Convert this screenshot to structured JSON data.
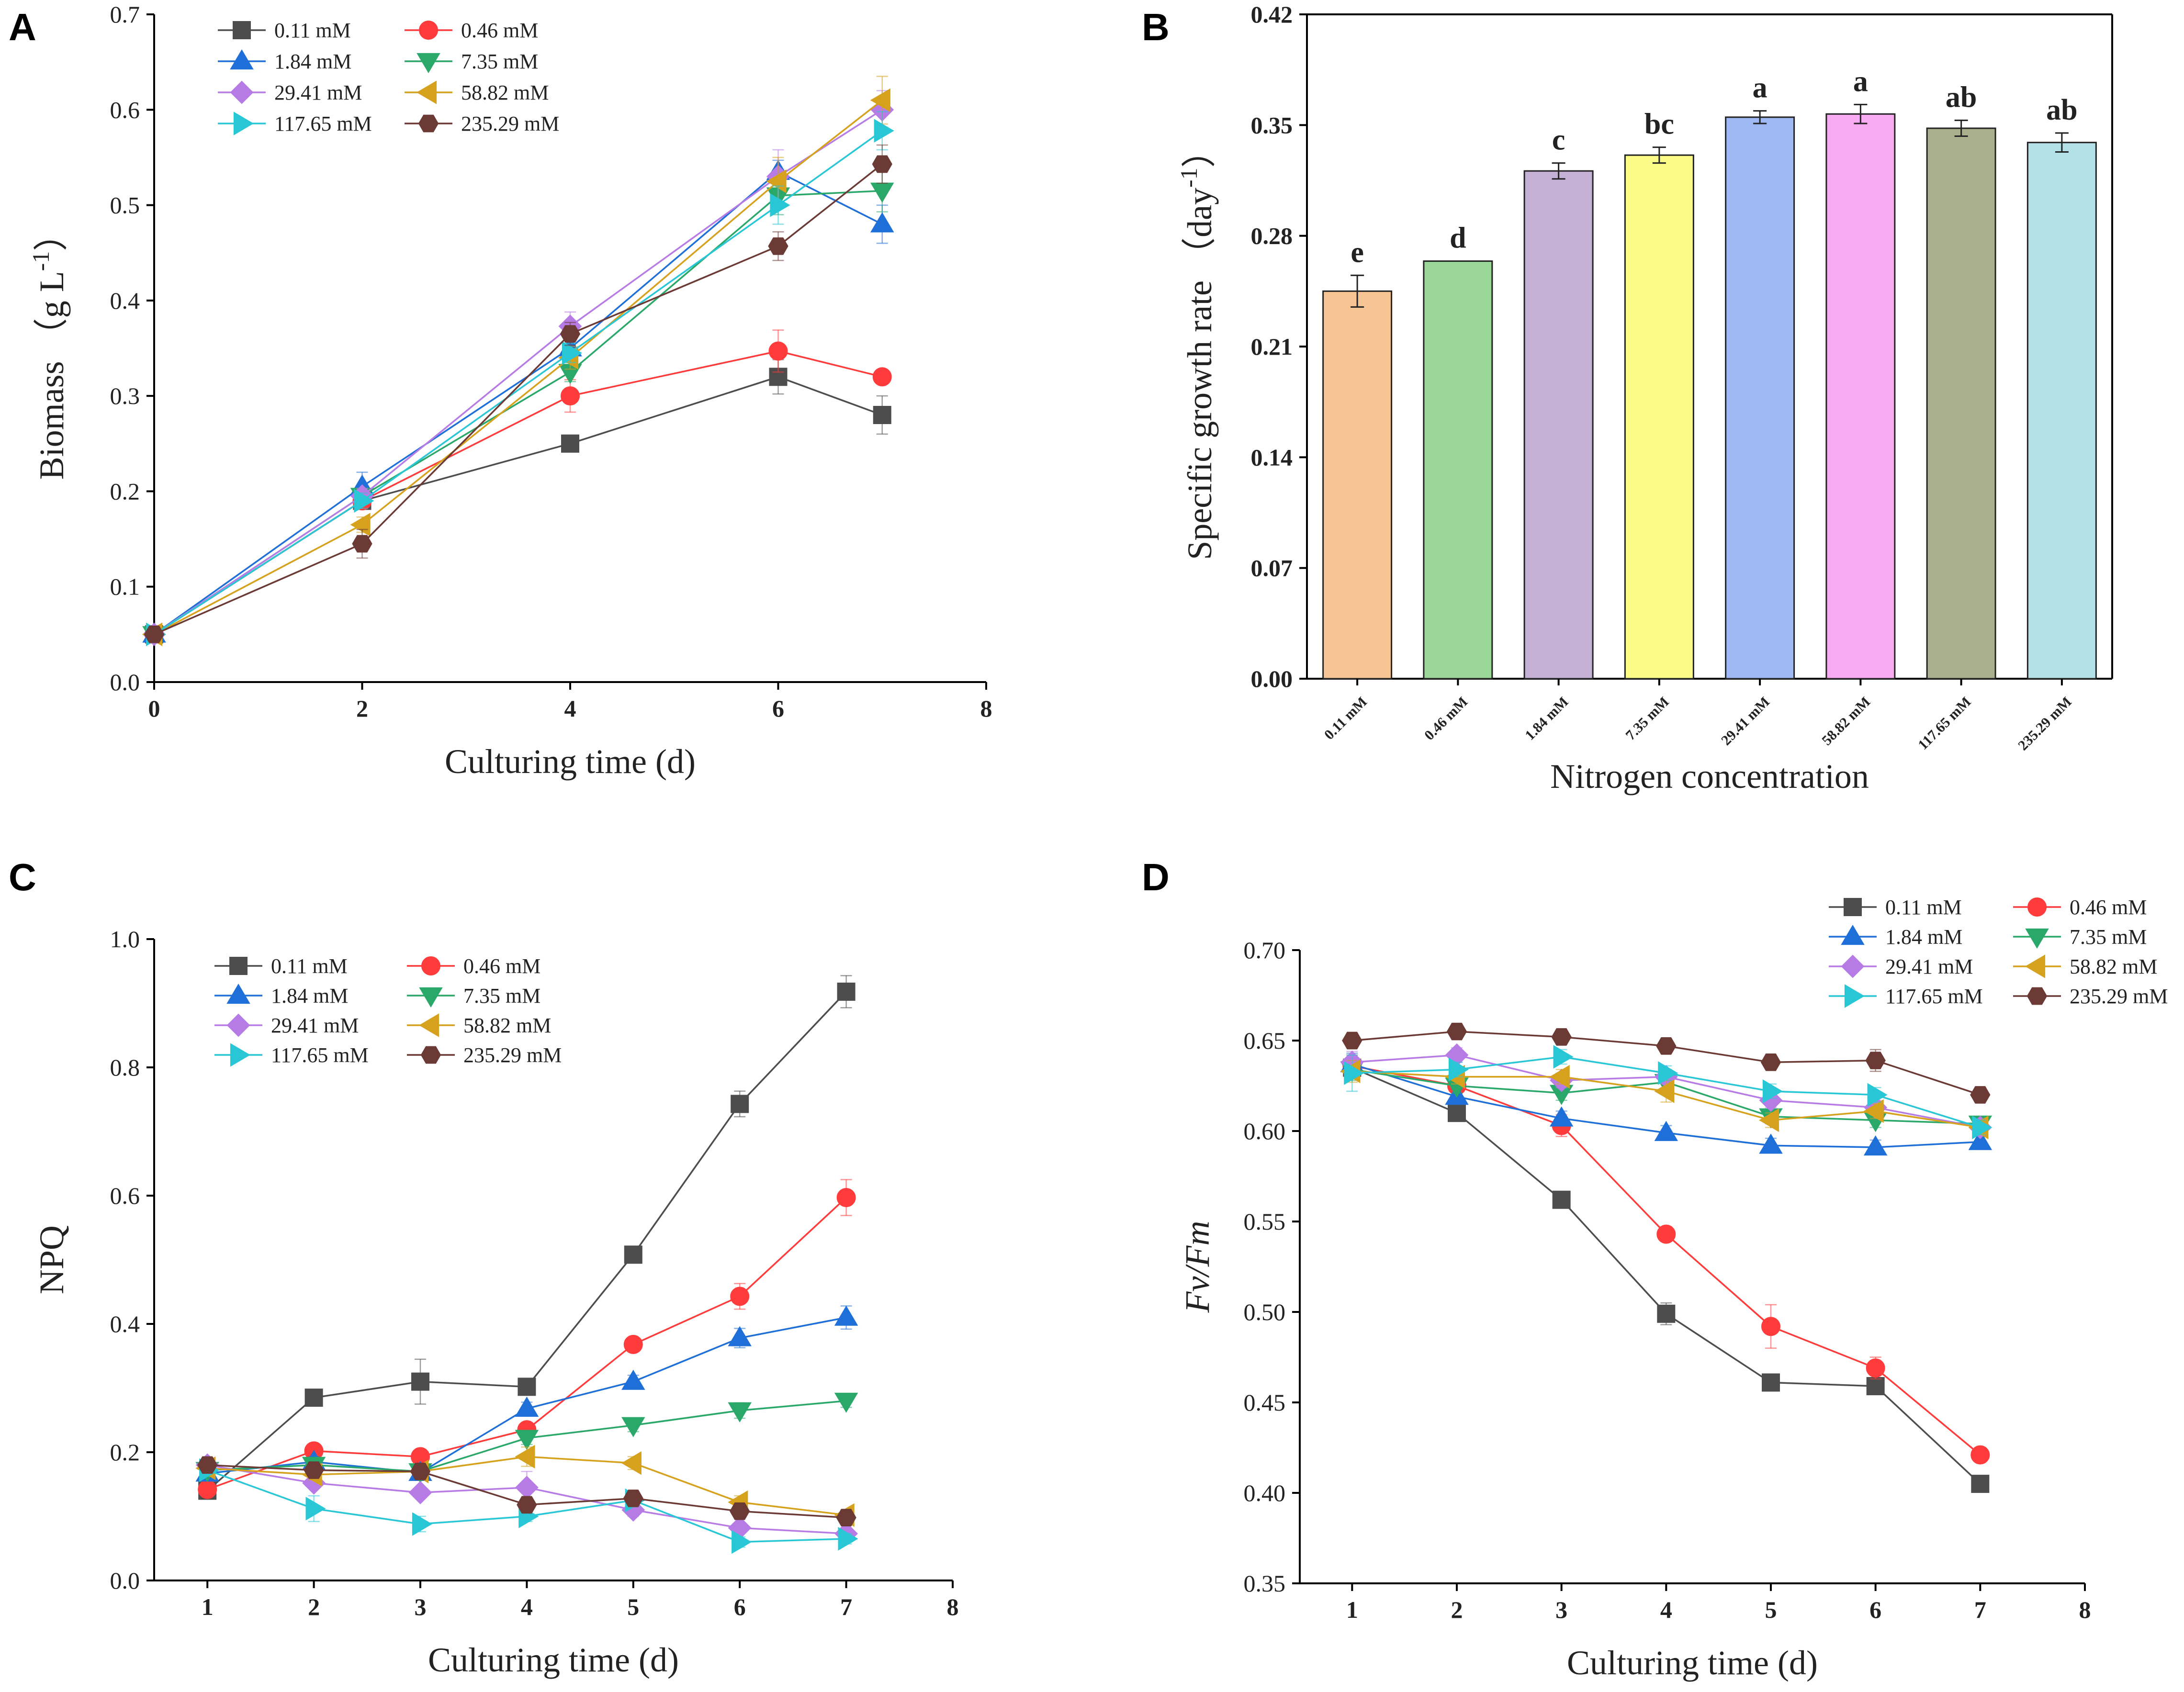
{
  "chart_data": [
    {
      "panel": "A",
      "type": "line",
      "xlabel": "Culturing time (d)",
      "ylabel": "Biomass （g L⁻¹）",
      "ylabel_main": "Biomass",
      "ylabel_unit": "（g L",
      "ylabel_exp": "-1",
      "ylabel_close": "）",
      "xlim": [
        0,
        8
      ],
      "ylim": [
        0,
        0.7
      ],
      "xticks": [
        0,
        2,
        4,
        6,
        8
      ],
      "xtick_labels": [
        "0",
        "2",
        "4",
        "6",
        "8"
      ],
      "yticks": [
        0,
        0.1,
        0.2,
        0.3,
        0.4,
        0.5,
        0.6,
        0.7
      ],
      "ytick_labels": [
        "0.0",
        "0.1",
        "0.2",
        "0.3",
        "0.4",
        "0.5",
        "0.6",
        "0.7"
      ],
      "x": [
        0,
        2,
        4,
        6,
        7
      ],
      "series": [
        {
          "name": "0.11 mM",
          "color": "#4d4d4d",
          "marker": "square",
          "values": [
            0.05,
            0.19,
            0.25,
            0.32,
            0.28
          ],
          "err": [
            0.004,
            0.008,
            0.008,
            0.018,
            0.02
          ]
        },
        {
          "name": "0.46 mM",
          "color": "#ff3b3b",
          "marker": "circle",
          "values": [
            0.05,
            0.19,
            0.3,
            0.347,
            0.32
          ],
          "err": [
            0.004,
            0.008,
            0.017,
            0.022,
            0.006
          ]
        },
        {
          "name": "1.84 mM",
          "color": "#1f6fd8",
          "marker": "triangle-up",
          "values": [
            0.05,
            0.205,
            0.35,
            0.535,
            0.48
          ],
          "err": [
            0.004,
            0.015,
            0.012,
            0.012,
            0.02
          ]
        },
        {
          "name": "7.35 mM",
          "color": "#2aa86a",
          "marker": "triangle-down",
          "values": [
            0.05,
            0.195,
            0.325,
            0.51,
            0.515
          ],
          "err": [
            0.004,
            0.008,
            0.01,
            0.02,
            0.022
          ]
        },
        {
          "name": "29.41 mM",
          "color": "#b77be6",
          "marker": "diamond",
          "values": [
            0.05,
            0.195,
            0.373,
            0.53,
            0.6
          ],
          "err": [
            0.004,
            0.008,
            0.015,
            0.028,
            0.02
          ]
        },
        {
          "name": "58.82 mM",
          "color": "#d6a21e",
          "marker": "triangle-left",
          "values": [
            0.05,
            0.165,
            0.34,
            0.525,
            0.61
          ],
          "err": [
            0.004,
            0.008,
            0.012,
            0.025,
            0.025
          ]
        },
        {
          "name": "117.65 mM",
          "color": "#29c7d6",
          "marker": "triangle-right",
          "values": [
            0.05,
            0.19,
            0.345,
            0.5,
            0.578
          ],
          "err": [
            0.004,
            0.008,
            0.01,
            0.02,
            0.02
          ]
        },
        {
          "name": "235.29 mM",
          "color": "#6b3a35",
          "marker": "hexagon",
          "values": [
            0.05,
            0.145,
            0.365,
            0.457,
            0.543
          ],
          "err": [
            0.004,
            0.015,
            0.012,
            0.015,
            0.02
          ]
        }
      ]
    },
    {
      "panel": "B",
      "type": "bar",
      "xlabel": "Nitrogen concentration",
      "ylabel": "Specific growth rate （day⁻¹）",
      "ylabel_main": "Specific growth rate （day",
      "ylabel_exp": "-1",
      "ylabel_close": "）",
      "ylim": [
        0,
        0.42
      ],
      "yticks": [
        0,
        0.07,
        0.14,
        0.21,
        0.28,
        0.35,
        0.42
      ],
      "ytick_labels": [
        "0.00",
        "0.07",
        "0.14",
        "0.21",
        "0.28",
        "0.35",
        "0.42"
      ],
      "categories": [
        "0.11 mM",
        "0.46 mM",
        "1.84 mM",
        "7.35 mM",
        "29.41 mM",
        "58.82 mM",
        "117.65 mM",
        "235.29 mM"
      ],
      "values": [
        0.245,
        0.264,
        0.321,
        0.331,
        0.355,
        0.357,
        0.348,
        0.339
      ],
      "errors": [
        0.01,
        0.0,
        0.005,
        0.005,
        0.004,
        0.006,
        0.005,
        0.006
      ],
      "significance": [
        "e",
        "d",
        "c",
        "bc",
        "a",
        "a",
        "ab",
        "ab"
      ],
      "colors": [
        "#f7c594",
        "#9ad698",
        "#c5b1d6",
        "#fbfb87",
        "#9db8f2",
        "#f8aaf0",
        "#aab08c",
        "#b4e0e7"
      ]
    },
    {
      "panel": "C",
      "type": "line",
      "xlabel": "Culturing time (d)",
      "ylabel": "NPQ",
      "xlim": [
        0.5,
        8
      ],
      "ylim": [
        0,
        1.0
      ],
      "xticks": [
        1,
        2,
        3,
        4,
        5,
        6,
        7,
        8
      ],
      "xtick_labels": [
        "1",
        "2",
        "3",
        "4",
        "5",
        "6",
        "7",
        "8"
      ],
      "yticks": [
        0,
        0.2,
        0.4,
        0.6,
        0.8,
        1.0
      ],
      "ytick_labels": [
        "0.0",
        "0.2",
        "0.4",
        "0.6",
        "0.8",
        "1.0"
      ],
      "x": [
        1,
        2,
        3,
        4,
        5,
        6,
        7
      ],
      "series": [
        {
          "name": "0.11 mM",
          "color": "#4d4d4d",
          "marker": "square",
          "values": [
            0.14,
            0.285,
            0.31,
            0.302,
            0.508,
            0.743,
            0.918
          ],
          "err": [
            0.005,
            0.01,
            0.035,
            0.008,
            0.008,
            0.02,
            0.025
          ]
        },
        {
          "name": "0.46 mM",
          "color": "#ff3b3b",
          "marker": "circle",
          "values": [
            0.142,
            0.202,
            0.193,
            0.235,
            0.368,
            0.443,
            0.597
          ],
          "err": [
            0.005,
            0.008,
            0.008,
            0.01,
            0.01,
            0.02,
            0.028
          ]
        },
        {
          "name": "1.84 mM",
          "color": "#1f6fd8",
          "marker": "triangle-up",
          "values": [
            0.167,
            0.185,
            0.168,
            0.268,
            0.31,
            0.378,
            0.41
          ],
          "err": [
            0.005,
            0.008,
            0.008,
            0.01,
            0.01,
            0.015,
            0.018
          ]
        },
        {
          "name": "7.35 mM",
          "color": "#2aa86a",
          "marker": "triangle-down",
          "values": [
            0.172,
            0.18,
            0.17,
            0.222,
            0.242,
            0.265,
            0.28
          ],
          "err": [
            0.005,
            0.008,
            0.008,
            0.01,
            0.01,
            0.012,
            0.01
          ]
        },
        {
          "name": "29.41 mM",
          "color": "#b77be6",
          "marker": "diamond",
          "values": [
            0.18,
            0.152,
            0.137,
            0.145,
            0.11,
            0.082,
            0.073
          ],
          "err": [
            0.005,
            0.008,
            0.008,
            0.025,
            0.01,
            0.008,
            0.008
          ]
        },
        {
          "name": "58.82 mM",
          "color": "#d6a21e",
          "marker": "triangle-left",
          "values": [
            0.175,
            0.165,
            0.17,
            0.193,
            0.183,
            0.122,
            0.102
          ],
          "err": [
            0.005,
            0.008,
            0.008,
            0.015,
            0.01,
            0.01,
            0.008
          ]
        },
        {
          "name": "117.65 mM",
          "color": "#29c7d6",
          "marker": "triangle-right",
          "values": [
            0.172,
            0.112,
            0.088,
            0.1,
            0.125,
            0.06,
            0.065
          ],
          "err": [
            0.005,
            0.02,
            0.012,
            0.008,
            0.01,
            0.008,
            0.008
          ]
        },
        {
          "name": "235.29 mM",
          "color": "#6b3a35",
          "marker": "hexagon",
          "values": [
            0.18,
            0.172,
            0.17,
            0.118,
            0.128,
            0.108,
            0.098
          ],
          "err": [
            0.005,
            0.008,
            0.008,
            0.008,
            0.008,
            0.008,
            0.008
          ]
        }
      ]
    },
    {
      "panel": "D",
      "type": "line",
      "xlabel": "Culturing time (d)",
      "ylabel": "Fv/Fm",
      "xlim": [
        0.5,
        8
      ],
      "ylim": [
        0.35,
        0.7
      ],
      "xticks": [
        1,
        2,
        3,
        4,
        5,
        6,
        7,
        8
      ],
      "xtick_labels": [
        "1",
        "2",
        "3",
        "4",
        "5",
        "6",
        "7",
        "8"
      ],
      "yticks": [
        0.35,
        0.4,
        0.45,
        0.5,
        0.55,
        0.6,
        0.65,
        0.7
      ],
      "ytick_labels": [
        "0.35",
        "0.40",
        "0.45",
        "0.50",
        "0.55",
        "0.60",
        "0.65",
        "0.70"
      ],
      "x": [
        1,
        2,
        3,
        4,
        5,
        6,
        7
      ],
      "series": [
        {
          "name": "0.11 mM",
          "color": "#4d4d4d",
          "marker": "square",
          "values": [
            0.635,
            0.61,
            0.562,
            0.499,
            0.461,
            0.459,
            0.405
          ],
          "err": [
            0.006,
            0.004,
            0.004,
            0.006,
            0.004,
            0.004,
            0.004
          ]
        },
        {
          "name": "0.46 mM",
          "color": "#ff3b3b",
          "marker": "circle",
          "values": [
            0.636,
            0.625,
            0.603,
            0.543,
            0.492,
            0.469,
            0.421
          ],
          "err": [
            0.006,
            0.004,
            0.006,
            0.004,
            0.012,
            0.006,
            0.004
          ]
        },
        {
          "name": "1.84 mM",
          "color": "#1f6fd8",
          "marker": "triangle-up",
          "values": [
            0.637,
            0.619,
            0.607,
            0.599,
            0.592,
            0.591,
            0.594
          ],
          "err": [
            0.006,
            0.004,
            0.004,
            0.004,
            0.004,
            0.004,
            0.004
          ]
        },
        {
          "name": "7.35 mM",
          "color": "#2aa86a",
          "marker": "triangle-down",
          "values": [
            0.634,
            0.625,
            0.621,
            0.627,
            0.608,
            0.606,
            0.604
          ],
          "err": [
            0.006,
            0.004,
            0.004,
            0.004,
            0.004,
            0.004,
            0.004
          ]
        },
        {
          "name": "29.41 mM",
          "color": "#b77be6",
          "marker": "diamond",
          "values": [
            0.638,
            0.642,
            0.628,
            0.63,
            0.617,
            0.613,
            0.602
          ],
          "err": [
            0.006,
            0.004,
            0.004,
            0.004,
            0.004,
            0.004,
            0.004
          ]
        },
        {
          "name": "58.82 mM",
          "color": "#d6a21e",
          "marker": "triangle-left",
          "values": [
            0.633,
            0.63,
            0.63,
            0.622,
            0.606,
            0.611,
            0.602
          ],
          "err": [
            0.006,
            0.004,
            0.004,
            0.006,
            0.004,
            0.004,
            0.004
          ]
        },
        {
          "name": "117.65 mM",
          "color": "#29c7d6",
          "marker": "triangle-right",
          "values": [
            0.632,
            0.634,
            0.641,
            0.632,
            0.622,
            0.62,
            0.602
          ],
          "err": [
            0.01,
            0.004,
            0.004,
            0.004,
            0.004,
            0.004,
            0.004
          ]
        },
        {
          "name": "235.29 mM",
          "color": "#6b3a35",
          "marker": "hexagon",
          "values": [
            0.65,
            0.655,
            0.652,
            0.647,
            0.638,
            0.639,
            0.62
          ],
          "err": [
            0.004,
            0.004,
            0.004,
            0.004,
            0.004,
            0.006,
            0.004
          ]
        }
      ]
    }
  ]
}
